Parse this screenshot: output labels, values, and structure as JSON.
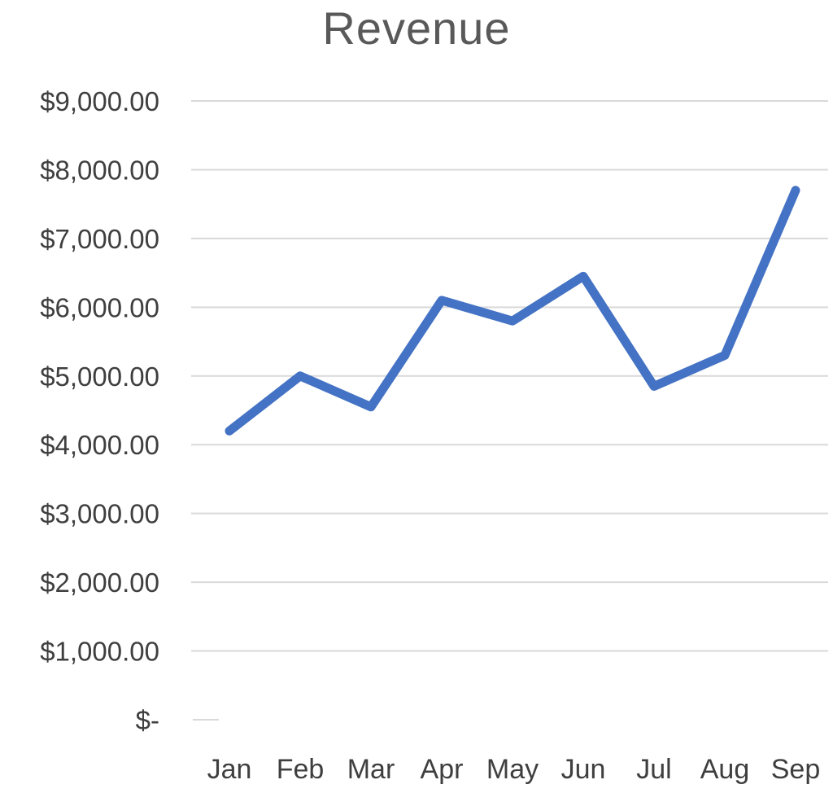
{
  "chart_data": {
    "type": "line",
    "title": "Revenue",
    "xlabel": "",
    "ylabel": "",
    "categories": [
      "Jan",
      "Feb",
      "Mar",
      "Apr",
      "May",
      "Jun",
      "Jul",
      "Aug",
      "Sep"
    ],
    "series": [
      {
        "name": "Revenue",
        "values": [
          4200,
          5000,
          4550,
          6100,
          5800,
          6450,
          4850,
          5300,
          7700
        ]
      }
    ],
    "ylim": [
      0,
      9000
    ],
    "y_tick_interval": 1000,
    "y_ticks": [
      {
        "value": 9000,
        "label": "$9,000.00"
      },
      {
        "value": 8000,
        "label": "$8,000.00"
      },
      {
        "value": 7000,
        "label": "$7,000.00"
      },
      {
        "value": 6000,
        "label": "$6,000.00"
      },
      {
        "value": 5000,
        "label": "$5,000.00"
      },
      {
        "value": 4000,
        "label": "$4,000.00"
      },
      {
        "value": 3000,
        "label": "$3,000.00"
      },
      {
        "value": 2000,
        "label": "$2,000.00"
      },
      {
        "value": 1000,
        "label": "$1,000.00"
      },
      {
        "value": 0,
        "label": "$-"
      }
    ],
    "grid": "horizontal",
    "legend": "none",
    "colors": {
      "line": "#4472C4",
      "grid": "#d9d9d9",
      "title": "#595959",
      "ticks": "#3f3f3f",
      "background": "#ffffff"
    }
  }
}
